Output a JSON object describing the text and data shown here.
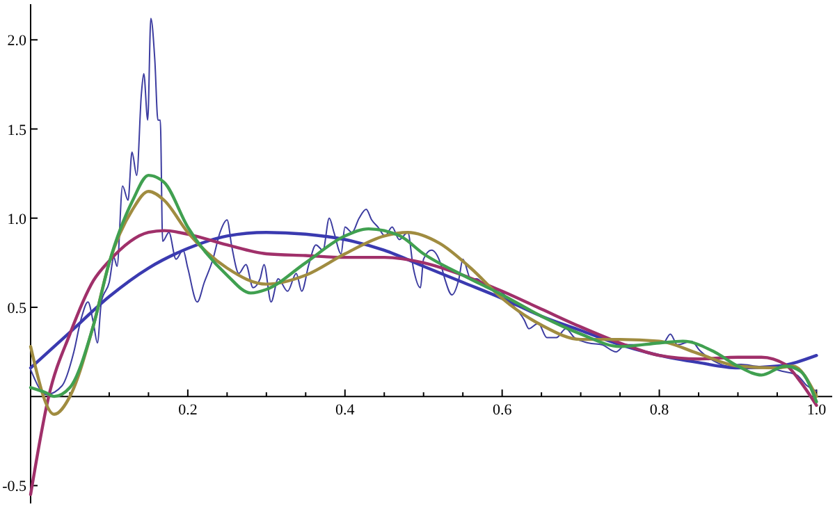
{
  "chart_data": {
    "type": "line",
    "xlim": [
      0,
      1.02
    ],
    "ylim": [
      -0.6,
      2.2
    ],
    "xticks": [
      {
        "value": 0.05,
        "label": null
      },
      {
        "value": 0.1,
        "label": null
      },
      {
        "value": 0.15,
        "label": null
      },
      {
        "value": 0.2,
        "label": "0.2"
      },
      {
        "value": 0.25,
        "label": null
      },
      {
        "value": 0.3,
        "label": null
      },
      {
        "value": 0.35,
        "label": null
      },
      {
        "value": 0.4,
        "label": "0.4"
      },
      {
        "value": 0.45,
        "label": null
      },
      {
        "value": 0.5,
        "label": null
      },
      {
        "value": 0.55,
        "label": null
      },
      {
        "value": 0.6,
        "label": "0.6"
      },
      {
        "value": 0.65,
        "label": null
      },
      {
        "value": 0.7,
        "label": null
      },
      {
        "value": 0.75,
        "label": null
      },
      {
        "value": 0.8,
        "label": "0.8"
      },
      {
        "value": 0.85,
        "label": null
      },
      {
        "value": 0.9,
        "label": null
      },
      {
        "value": 0.95,
        "label": null
      },
      {
        "value": 1.0,
        "label": "1.0"
      }
    ],
    "yticks": [
      {
        "value": -0.5,
        "label": "-0.5"
      },
      {
        "value": 0.5,
        "label": "0.5"
      },
      {
        "value": 1.0,
        "label": "1.0"
      },
      {
        "value": 1.5,
        "label": "1.5"
      },
      {
        "value": 2.0,
        "label": "2.0"
      }
    ],
    "grid": false,
    "marker": "none",
    "series": [
      {
        "color": "#3c3ca0",
        "x": [
          0,
          0.02,
          0.04,
          0.055,
          0.064,
          0.073,
          0.08,
          0.085,
          0.09,
          0.1,
          0.106,
          0.11,
          0.117,
          0.124,
          0.129,
          0.135,
          0.141,
          0.144,
          0.149,
          0.153,
          0.158,
          0.162,
          0.165,
          0.168,
          0.176,
          0.185,
          0.194,
          0.2,
          0.212,
          0.221,
          0.232,
          0.241,
          0.25,
          0.256,
          0.265,
          0.274,
          0.283,
          0.292,
          0.297,
          0.306,
          0.315,
          0.327,
          0.338,
          0.345,
          0.354,
          0.363,
          0.372,
          0.38,
          0.386,
          0.395,
          0.4,
          0.409,
          0.418,
          0.427,
          0.434,
          0.442,
          0.451,
          0.46,
          0.469,
          0.48,
          0.487,
          0.496,
          0.5,
          0.51,
          0.522,
          0.527,
          0.536,
          0.545,
          0.55,
          0.56,
          0.568,
          0.58,
          0.598,
          0.61,
          0.628,
          0.634,
          0.646,
          0.657,
          0.669,
          0.681,
          0.692,
          0.71,
          0.727,
          0.745,
          0.757,
          0.775,
          0.793,
          0.805,
          0.814,
          0.823,
          0.841,
          0.851,
          0.869,
          0.887,
          0.904,
          0.922,
          0.94,
          0.958,
          0.975,
          0.988,
          1.0
        ],
        "values": [
          0.15,
          0.01,
          0.06,
          0.25,
          0.43,
          0.53,
          0.41,
          0.3,
          0.53,
          0.64,
          0.78,
          0.73,
          1.18,
          1.1,
          1.37,
          1.24,
          1.7,
          1.81,
          1.55,
          2.12,
          1.89,
          1.55,
          1.55,
          0.87,
          0.92,
          0.77,
          0.82,
          0.72,
          0.53,
          0.64,
          0.77,
          0.92,
          0.99,
          0.84,
          0.69,
          0.74,
          0.61,
          0.66,
          0.74,
          0.53,
          0.66,
          0.59,
          0.69,
          0.59,
          0.74,
          0.85,
          0.82,
          1.0,
          0.92,
          0.8,
          0.95,
          0.92,
          1.0,
          1.05,
          0.99,
          0.95,
          0.9,
          0.95,
          0.88,
          0.92,
          0.72,
          0.61,
          0.77,
          0.82,
          0.74,
          0.66,
          0.57,
          0.66,
          0.77,
          0.66,
          0.66,
          0.61,
          0.59,
          0.53,
          0.43,
          0.38,
          0.41,
          0.33,
          0.33,
          0.38,
          0.33,
          0.3,
          0.29,
          0.25,
          0.29,
          0.29,
          0.3,
          0.3,
          0.35,
          0.29,
          0.31,
          0.26,
          0.2,
          0.17,
          0.18,
          0.17,
          0.16,
          0.14,
          0.12,
          0.06,
          0.03
        ]
      },
      {
        "color": "#3a3ab0",
        "x": [
          0,
          0.05,
          0.1,
          0.15,
          0.2,
          0.25,
          0.3,
          0.35,
          0.4,
          0.45,
          0.5,
          0.55,
          0.6,
          0.65,
          0.7,
          0.75,
          0.8,
          0.85,
          0.9,
          0.95,
          1.0
        ],
        "values": [
          0.16,
          0.36,
          0.56,
          0.72,
          0.83,
          0.9,
          0.92,
          0.91,
          0.88,
          0.82,
          0.73,
          0.64,
          0.55,
          0.45,
          0.37,
          0.29,
          0.23,
          0.19,
          0.16,
          0.17,
          0.23
        ]
      },
      {
        "color": "#a0306a",
        "x": [
          0,
          0.023,
          0.05,
          0.08,
          0.1,
          0.15,
          0.17,
          0.2,
          0.25,
          0.3,
          0.35,
          0.4,
          0.45,
          0.5,
          0.55,
          0.6,
          0.65,
          0.7,
          0.75,
          0.8,
          0.85,
          0.9,
          0.93,
          0.96,
          0.98,
          1.0
        ],
        "values": [
          -0.55,
          0.0,
          0.35,
          0.65,
          0.76,
          0.92,
          0.93,
          0.91,
          0.85,
          0.8,
          0.79,
          0.78,
          0.78,
          0.75,
          0.68,
          0.59,
          0.49,
          0.39,
          0.3,
          0.23,
          0.21,
          0.22,
          0.22,
          0.18,
          0.08,
          -0.05
        ]
      },
      {
        "color": "#a08c40",
        "x": [
          0,
          0.03,
          0.05,
          0.08,
          0.1,
          0.13,
          0.15,
          0.17,
          0.2,
          0.25,
          0.3,
          0.35,
          0.4,
          0.45,
          0.48,
          0.52,
          0.56,
          0.6,
          0.65,
          0.7,
          0.75,
          0.8,
          0.85,
          0.9,
          0.95,
          0.97,
          1.0
        ],
        "values": [
          0.28,
          -0.1,
          0.0,
          0.4,
          0.75,
          1.05,
          1.15,
          1.1,
          0.92,
          0.72,
          0.63,
          0.68,
          0.8,
          0.9,
          0.92,
          0.86,
          0.72,
          0.55,
          0.4,
          0.32,
          0.32,
          0.31,
          0.24,
          0.17,
          0.16,
          0.17,
          0.0
        ]
      },
      {
        "color": "#40a050",
        "x": [
          0,
          0.02,
          0.03,
          0.05,
          0.08,
          0.1,
          0.13,
          0.15,
          0.17,
          0.2,
          0.25,
          0.28,
          0.3,
          0.35,
          0.4,
          0.43,
          0.47,
          0.5,
          0.55,
          0.6,
          0.65,
          0.7,
          0.75,
          0.8,
          0.83,
          0.87,
          0.9,
          0.93,
          0.96,
          0.98,
          1.0
        ],
        "values": [
          0.05,
          0.02,
          0.0,
          0.05,
          0.4,
          0.75,
          1.1,
          1.24,
          1.2,
          0.95,
          0.68,
          0.58,
          0.6,
          0.75,
          0.9,
          0.94,
          0.9,
          0.8,
          0.68,
          0.57,
          0.45,
          0.35,
          0.28,
          0.3,
          0.31,
          0.25,
          0.17,
          0.12,
          0.17,
          0.14,
          -0.03
        ]
      }
    ]
  }
}
